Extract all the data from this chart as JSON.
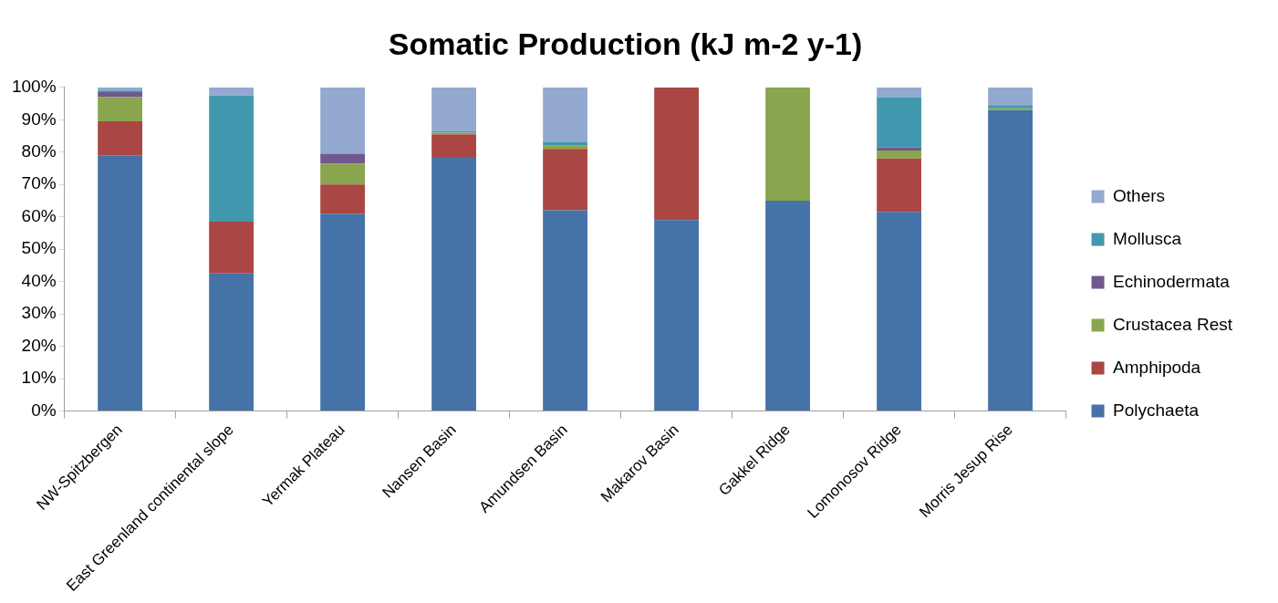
{
  "chart_data": {
    "type": "bar",
    "title": "Somatic Production (kJ m-2 y-1)",
    "stacked": true,
    "grid": false,
    "legend": "right",
    "categories": [
      "NW-Spitzbergen",
      "East Greenland continental slope",
      "Yermak Plateau",
      "Nansen Basin",
      "Amundsen Basin",
      "Makarov Basin",
      "Gakkel Ridge",
      "Lomonosov Ridge",
      "Morris Jesup Rise"
    ],
    "ylim": [
      0,
      100
    ],
    "yticks": [
      {
        "value": 0,
        "label": "0%"
      },
      {
        "value": 10,
        "label": "10%"
      },
      {
        "value": 20,
        "label": "20%"
      },
      {
        "value": 30,
        "label": "30%"
      },
      {
        "value": 40,
        "label": "40%"
      },
      {
        "value": 50,
        "label": "50%"
      },
      {
        "value": 60,
        "label": "60%"
      },
      {
        "value": 70,
        "label": "70%"
      },
      {
        "value": 80,
        "label": "80%"
      },
      {
        "value": 90,
        "label": "90%"
      },
      {
        "value": 100,
        "label": "100%"
      }
    ],
    "series": [
      {
        "name": "Polychaeta",
        "color": "#4572a7",
        "values": [
          79,
          42.5,
          61,
          78.5,
          62,
          59,
          65,
          61.5,
          93
        ]
      },
      {
        "name": "Amphipoda",
        "color": "#aa4643",
        "values": [
          10.5,
          16,
          9,
          7,
          19,
          41,
          0,
          16.5,
          0
        ]
      },
      {
        "name": "Crustacea Rest",
        "color": "#89a54e",
        "values": [
          7.5,
          0,
          6.5,
          0.5,
          1,
          0,
          35,
          2.5,
          0.5
        ]
      },
      {
        "name": "Echinodermata",
        "color": "#71588f",
        "values": [
          1.5,
          0,
          3,
          0,
          0,
          0,
          0,
          1,
          0
        ]
      },
      {
        "name": "Mollusca",
        "color": "#4198af",
        "values": [
          0.5,
          39,
          0,
          0.5,
          1,
          0,
          0,
          15.5,
          1
        ]
      },
      {
        "name": "Others",
        "color": "#93a9cf",
        "values": [
          1,
          2.5,
          20.5,
          13.5,
          17,
          0,
          0,
          3,
          5.5
        ]
      }
    ]
  }
}
